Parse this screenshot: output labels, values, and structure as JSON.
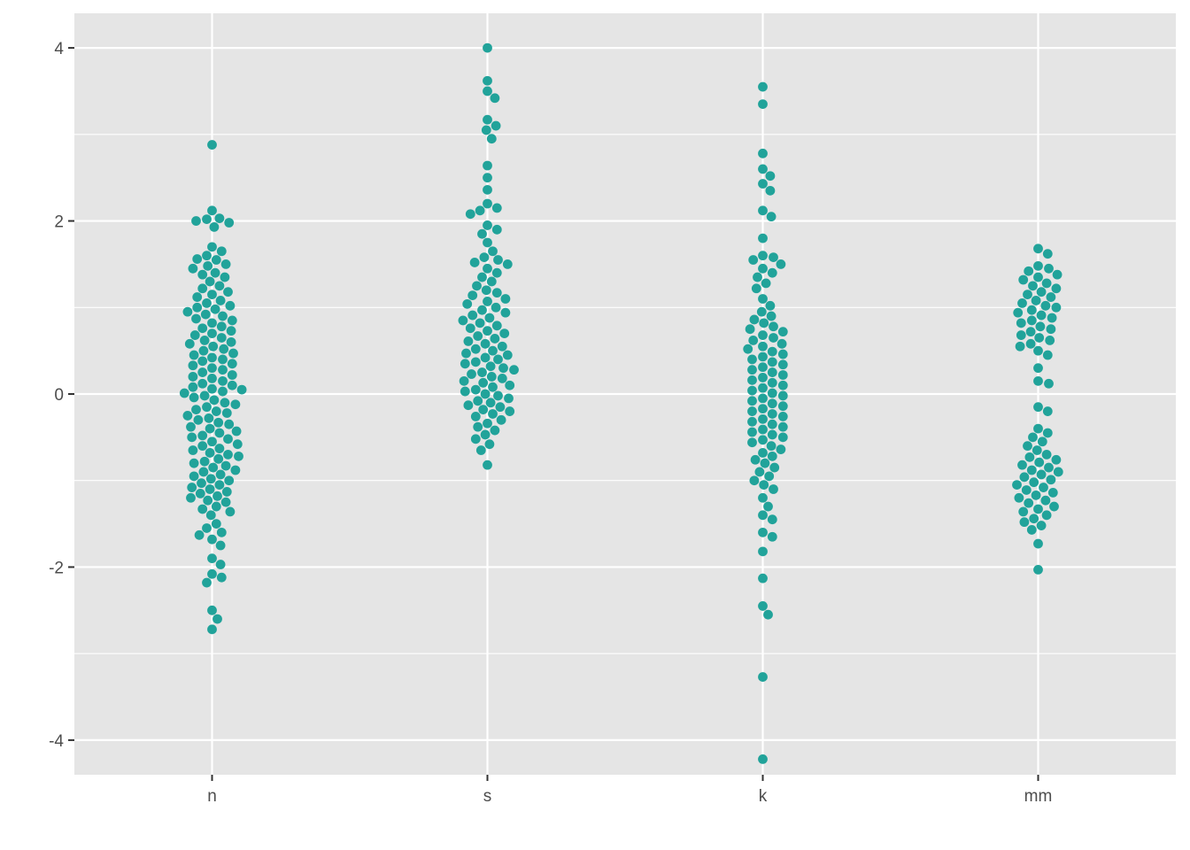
{
  "chart_data": {
    "type": "scatter",
    "subtype": "beeswarm",
    "title": "",
    "xlabel": "",
    "ylabel": "",
    "categories": [
      "n",
      "s",
      "k",
      "mm"
    ],
    "ylim": [
      -4.4,
      4.4
    ],
    "yticks": [
      -4,
      -2,
      0,
      2,
      4
    ],
    "ytick_labels": [
      "-4",
      "-2",
      "0",
      "2",
      "4"
    ],
    "grid": true,
    "panel_background": "#e5e5e5",
    "grid_color": "#ffffff",
    "point_color": "#21a39a",
    "series": [
      {
        "category": "n",
        "values": [
          2.88,
          2.12,
          2.03,
          2.02,
          2.0,
          1.98,
          1.93,
          1.7,
          1.65,
          1.6,
          1.56,
          1.55,
          1.5,
          1.48,
          1.45,
          1.4,
          1.38,
          1.35,
          1.3,
          1.25,
          1.22,
          1.18,
          1.15,
          1.12,
          1.08,
          1.05,
          1.02,
          1.0,
          0.98,
          0.95,
          0.92,
          0.9,
          0.87,
          0.85,
          0.82,
          0.78,
          0.76,
          0.73,
          0.7,
          0.68,
          0.65,
          0.62,
          0.6,
          0.58,
          0.55,
          0.52,
          0.5,
          0.47,
          0.45,
          0.42,
          0.4,
          0.38,
          0.35,
          0.33,
          0.3,
          0.28,
          0.25,
          0.22,
          0.2,
          0.18,
          0.15,
          0.12,
          0.1,
          0.08,
          0.06,
          0.05,
          0.03,
          0.01,
          -0.02,
          -0.04,
          -0.07,
          -0.1,
          -0.12,
          -0.15,
          -0.18,
          -0.2,
          -0.22,
          -0.25,
          -0.28,
          -0.3,
          -0.33,
          -0.35,
          -0.38,
          -0.4,
          -0.43,
          -0.45,
          -0.48,
          -0.5,
          -0.52,
          -0.55,
          -0.58,
          -0.6,
          -0.63,
          -0.65,
          -0.68,
          -0.7,
          -0.72,
          -0.75,
          -0.78,
          -0.8,
          -0.83,
          -0.85,
          -0.88,
          -0.9,
          -0.93,
          -0.95,
          -0.98,
          -1.0,
          -1.03,
          -1.05,
          -1.08,
          -1.1,
          -1.13,
          -1.15,
          -1.18,
          -1.2,
          -1.23,
          -1.25,
          -1.3,
          -1.33,
          -1.36,
          -1.4,
          -1.5,
          -1.55,
          -1.6,
          -1.63,
          -1.68,
          -1.75,
          -1.9,
          -1.97,
          -2.08,
          -2.12,
          -2.18,
          -2.5,
          -2.6,
          -2.72
        ]
      },
      {
        "category": "s",
        "values": [
          4.0,
          3.62,
          3.5,
          3.42,
          3.17,
          3.1,
          3.05,
          2.95,
          2.64,
          2.5,
          2.36,
          2.2,
          2.15,
          2.12,
          2.08,
          1.95,
          1.9,
          1.85,
          1.75,
          1.65,
          1.58,
          1.55,
          1.52,
          1.5,
          1.45,
          1.4,
          1.35,
          1.3,
          1.25,
          1.2,
          1.17,
          1.14,
          1.1,
          1.07,
          1.04,
          1.0,
          0.97,
          0.94,
          0.91,
          0.88,
          0.85,
          0.82,
          0.79,
          0.76,
          0.73,
          0.7,
          0.67,
          0.64,
          0.61,
          0.58,
          0.55,
          0.52,
          0.5,
          0.47,
          0.45,
          0.42,
          0.4,
          0.37,
          0.35,
          0.32,
          0.3,
          0.28,
          0.25,
          0.23,
          0.2,
          0.18,
          0.15,
          0.13,
          0.1,
          0.08,
          0.05,
          0.03,
          0.0,
          -0.02,
          -0.05,
          -0.08,
          -0.1,
          -0.13,
          -0.15,
          -0.18,
          -0.2,
          -0.23,
          -0.26,
          -0.3,
          -0.34,
          -0.38,
          -0.42,
          -0.47,
          -0.52,
          -0.58,
          -0.65,
          -0.82
        ]
      },
      {
        "category": "k",
        "values": [
          3.55,
          3.35,
          2.78,
          2.6,
          2.52,
          2.43,
          2.35,
          2.12,
          2.05,
          1.8,
          1.6,
          1.58,
          1.55,
          1.5,
          1.45,
          1.4,
          1.35,
          1.28,
          1.22,
          1.1,
          1.02,
          0.95,
          0.9,
          0.86,
          0.82,
          0.78,
          0.75,
          0.72,
          0.68,
          0.65,
          0.62,
          0.58,
          0.55,
          0.52,
          0.49,
          0.46,
          0.43,
          0.4,
          0.37,
          0.34,
          0.31,
          0.28,
          0.25,
          0.22,
          0.19,
          0.16,
          0.13,
          0.1,
          0.07,
          0.04,
          0.01,
          -0.02,
          -0.05,
          -0.08,
          -0.11,
          -0.14,
          -0.17,
          -0.2,
          -0.23,
          -0.26,
          -0.29,
          -0.32,
          -0.35,
          -0.38,
          -0.41,
          -0.44,
          -0.47,
          -0.5,
          -0.53,
          -0.56,
          -0.6,
          -0.64,
          -0.68,
          -0.72,
          -0.76,
          -0.8,
          -0.85,
          -0.9,
          -0.95,
          -1.0,
          -1.05,
          -1.1,
          -1.2,
          -1.3,
          -1.4,
          -1.45,
          -1.6,
          -1.65,
          -1.82,
          -2.13,
          -2.45,
          -2.55,
          -3.27,
          -4.22
        ]
      },
      {
        "category": "mm",
        "values": [
          1.68,
          1.62,
          1.48,
          1.45,
          1.42,
          1.38,
          1.35,
          1.32,
          1.28,
          1.25,
          1.22,
          1.18,
          1.15,
          1.12,
          1.08,
          1.05,
          1.02,
          1.0,
          0.97,
          0.94,
          0.91,
          0.88,
          0.85,
          0.82,
          0.78,
          0.75,
          0.72,
          0.68,
          0.65,
          0.62,
          0.58,
          0.55,
          0.5,
          0.45,
          0.3,
          0.15,
          0.12,
          -0.15,
          -0.2,
          -0.4,
          -0.45,
          -0.5,
          -0.55,
          -0.6,
          -0.65,
          -0.7,
          -0.73,
          -0.76,
          -0.79,
          -0.82,
          -0.85,
          -0.88,
          -0.9,
          -0.93,
          -0.96,
          -0.99,
          -1.02,
          -1.05,
          -1.08,
          -1.11,
          -1.14,
          -1.17,
          -1.2,
          -1.23,
          -1.26,
          -1.3,
          -1.33,
          -1.36,
          -1.4,
          -1.44,
          -1.48,
          -1.52,
          -1.57,
          -1.73,
          -2.03
        ]
      }
    ]
  }
}
